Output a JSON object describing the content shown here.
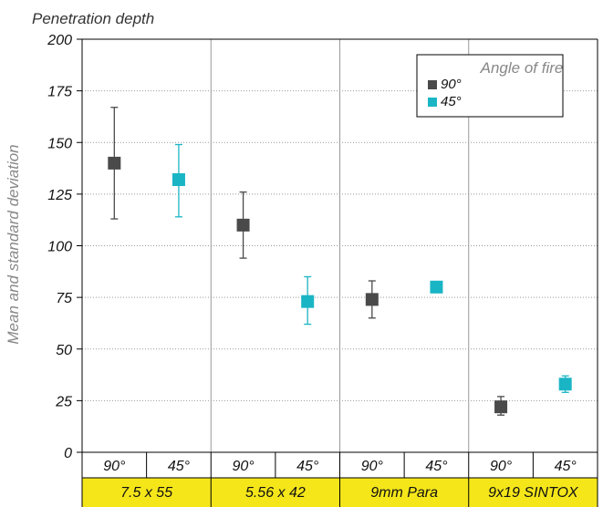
{
  "chart_data": {
    "type": "scatter",
    "title": "Penetration depth",
    "ylabel": "Mean and standard deviation",
    "ylim": [
      0,
      200
    ],
    "yticks": [
      0,
      25,
      50,
      75,
      100,
      125,
      150,
      175,
      200
    ],
    "grid": true,
    "legend": {
      "title": "Angle of fire",
      "placement": "top-right",
      "entries": [
        {
          "label": "90°",
          "color": "#4a4a4a"
        },
        {
          "label": "45°",
          "color": "#1ab5c5"
        }
      ]
    },
    "groups": [
      {
        "label": "7.5 x 55",
        "subcategories": [
          "90°",
          "45°"
        ]
      },
      {
        "label": "5.56 x 42",
        "subcategories": [
          "90°",
          "45°"
        ]
      },
      {
        "label": "9mm Para",
        "subcategories": [
          "90°",
          "45°"
        ]
      },
      {
        "label": "9x19 SINTOX",
        "subcategories": [
          "90°",
          "45°"
        ]
      }
    ],
    "series": [
      {
        "name": "90°",
        "color": "#4a4a4a",
        "points": [
          {
            "group": 0,
            "mean": 140,
            "low": 113,
            "high": 167
          },
          {
            "group": 1,
            "mean": 110,
            "low": 94,
            "high": 126
          },
          {
            "group": 2,
            "mean": 74,
            "low": 65,
            "high": 83
          },
          {
            "group": 3,
            "mean": 22,
            "low": 18,
            "high": 27
          }
        ]
      },
      {
        "name": "45°",
        "color": "#1ab5c5",
        "points": [
          {
            "group": 0,
            "mean": 132,
            "low": 114,
            "high": 149
          },
          {
            "group": 1,
            "mean": 73,
            "low": 62,
            "high": 85
          },
          {
            "group": 2,
            "mean": 80,
            "low": 80,
            "high": 80
          },
          {
            "group": 3,
            "mean": 33,
            "low": 29,
            "high": 37
          }
        ]
      }
    ],
    "colors": {
      "category_band": "#f5e61a",
      "grid": "#999999",
      "axis": "#000000",
      "text": "#111111",
      "axis_title": "#888888"
    }
  }
}
